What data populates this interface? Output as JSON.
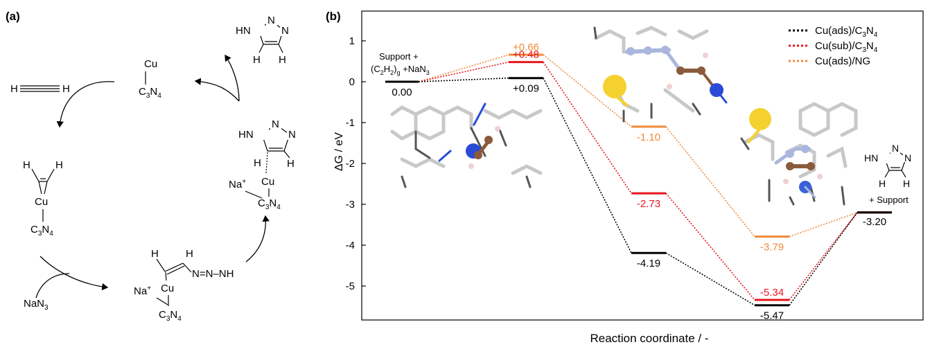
{
  "panel_a": {
    "label": "(a)",
    "acetylene": "H—≡—H",
    "cu": "Cu",
    "c3n4": "C3N4",
    "h": "H",
    "na_plus": "Na+",
    "nana3": "NaN3",
    "azide": "N=N—N̄H",
    "triazole_hn": "HN",
    "triazole_n": "N"
  },
  "panel_b": {
    "label": "(b)",
    "start_label_line1": "Support +",
    "start_label_line2": "(C2H2)g +NaN3",
    "end_label": "+ Support",
    "molecule": "HN—N=N triazole"
  },
  "colors": {
    "cu_ads_c3n4": "#000000",
    "cu_sub_c3n4": "#e8141c",
    "cu_ads_ng": "#f0893a",
    "s_atom": "#f5d130",
    "cu_atom": "#2a4bd7",
    "c_atom": "#8b5a3c",
    "n_atom": "#aab6dd"
  },
  "chart_data": {
    "type": "line",
    "xlabel": "Reaction coordinate / -",
    "ylabel": "ΔG / eV",
    "ylim": [
      -6.0,
      1.6
    ],
    "yticks": [
      1,
      0,
      -1,
      -2,
      -3,
      -4,
      -5
    ],
    "ytick_labels": [
      "1",
      "0",
      "-1",
      "-2",
      "-3",
      "-4",
      "-5"
    ],
    "legend_position": "top-right",
    "states": 5,
    "series": [
      {
        "name": "Cu(ads)/C3N4",
        "color": "#000000",
        "values": [
          0.0,
          0.09,
          -4.19,
          -5.47,
          -3.2
        ],
        "labels": [
          "0.00",
          "+0.09",
          "-4.19",
          "-5.47",
          "-3.20"
        ]
      },
      {
        "name": "Cu(sub)/C3N4",
        "color": "#e8141c",
        "values": [
          0.0,
          0.48,
          -2.73,
          -5.34,
          -3.2
        ],
        "labels": [
          "",
          "+0.48",
          "-2.73",
          "-5.34",
          ""
        ]
      },
      {
        "name": "Cu(ads)/NG",
        "color": "#f0893a",
        "values": [
          0.0,
          0.66,
          -1.1,
          -3.79,
          -3.2
        ],
        "labels": [
          "",
          "+0.66",
          "-1.10",
          "-3.79",
          ""
        ]
      }
    ]
  }
}
